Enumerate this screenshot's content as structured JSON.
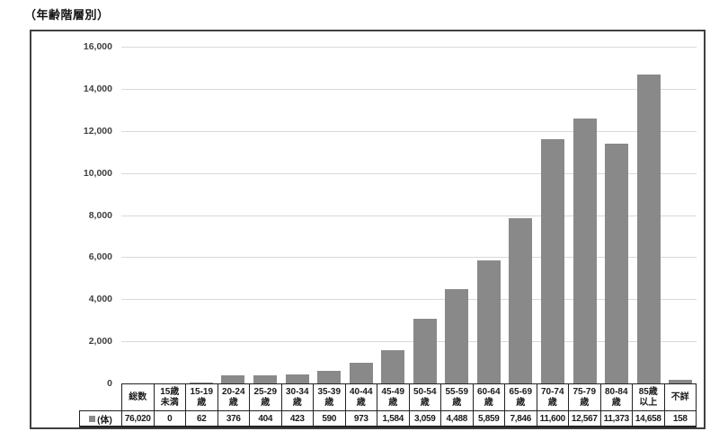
{
  "chart_data": {
    "type": "bar",
    "title": "（年齢階層別）",
    "series_name": "(体)",
    "xlabel": "",
    "ylabel": "",
    "ylim": [
      0,
      16000
    ],
    "ytick_interval": 2000,
    "ytick_labels": [
      "0",
      "2,000",
      "4,000",
      "6,000",
      "8,000",
      "10,000",
      "12,000",
      "14,000",
      "16,000"
    ],
    "grid": true,
    "legend_position": "table-row-header",
    "categories": [
      "総数",
      "15歳\n未満",
      "15-19\n歳",
      "20-24\n歳",
      "25-29\n歳",
      "30-34\n歳",
      "35-39\n歳",
      "40-44\n歳",
      "45-49\n歳",
      "50-54\n歳",
      "55-59\n歳",
      "60-64\n歳",
      "65-69\n歳",
      "70-74\n歳",
      "75-79\n歳",
      "80-84\n歳",
      "85歳\n以上",
      "不詳"
    ],
    "values": [
      76020,
      0,
      62,
      376,
      404,
      423,
      590,
      973,
      1584,
      3059,
      4488,
      5859,
      7846,
      11600,
      12567,
      11373,
      14658,
      158
    ],
    "value_labels": [
      "76,020",
      "0",
      "62",
      "376",
      "404",
      "423",
      "590",
      "973",
      "1,584",
      "3,059",
      "4,488",
      "5,859",
      "7,846",
      "11,600",
      "12,567",
      "11,373",
      "14,658",
      "158"
    ]
  },
  "colors": {
    "bar": "#898989",
    "grid": "#d9d9d9",
    "axis_text": "#404040",
    "table_border": "#222222",
    "frame_border": "#404040"
  }
}
